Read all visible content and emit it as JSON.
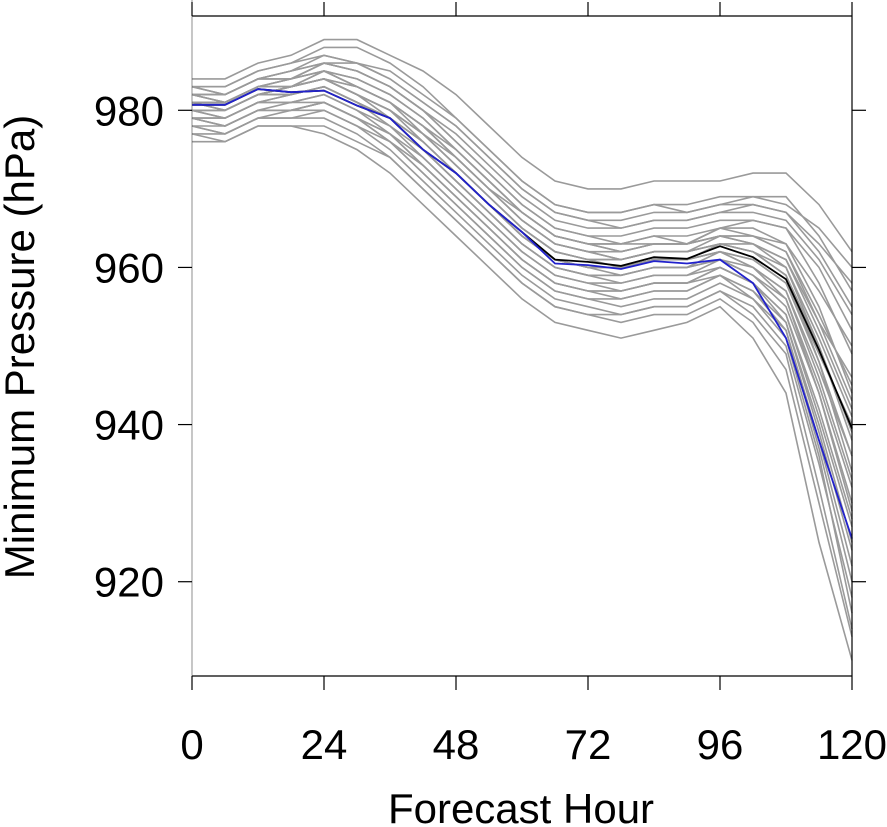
{
  "chart_data": {
    "type": "line",
    "title": "",
    "xlabel": "Forecast Hour",
    "ylabel": "Minimum Pressure (hPa)",
    "xlim": [
      0,
      120
    ],
    "ylim": [
      908,
      992
    ],
    "x_ticks": [
      0,
      24,
      48,
      72,
      96,
      120
    ],
    "x_tick_labels": [
      "0",
      "24",
      "48",
      "72",
      "96",
      "120"
    ],
    "y_ticks": [
      920,
      940,
      960,
      980
    ],
    "y_tick_labels": [
      "920",
      "940",
      "960",
      "980"
    ],
    "grid": false,
    "legend": "none",
    "x": [
      0,
      6,
      12,
      18,
      24,
      30,
      36,
      42,
      48,
      54,
      60,
      66,
      72,
      78,
      84,
      90,
      96,
      102,
      108,
      114,
      120
    ],
    "highlight_series": [
      {
        "color": "#000000",
        "values": [
          980.7,
          980.7,
          982.7,
          982.3,
          982.5,
          980.6,
          979.0,
          975.0,
          972.0,
          968.0,
          964.5,
          961.0,
          960.7,
          960.2,
          961.3,
          961.1,
          962.7,
          961.3,
          958.5,
          949.5,
          939.5
        ]
      },
      {
        "color": "#2222cc",
        "values": [
          980.7,
          980.7,
          982.7,
          982.3,
          982.5,
          980.6,
          979.0,
          975.0,
          972.0,
          968.0,
          964.5,
          960.5,
          960.3,
          959.8,
          960.8,
          960.5,
          961.0,
          958.0,
          951.0,
          938.0,
          925.5
        ]
      }
    ],
    "ensemble_series": [
      {
        "values": [
          981,
          980,
          982,
          983,
          985,
          983,
          981,
          977,
          973,
          969,
          965,
          962,
          961,
          961,
          962,
          962,
          964,
          964,
          963,
          955,
          944
        ]
      },
      {
        "values": [
          980,
          979,
          981,
          982,
          983,
          981,
          979,
          976,
          972,
          968,
          964,
          961,
          960,
          960,
          961,
          961,
          962,
          961,
          958,
          948,
          936
        ]
      },
      {
        "values": [
          982,
          982,
          984,
          984,
          986,
          985,
          983,
          980,
          976,
          972,
          968,
          965,
          964,
          963,
          964,
          964,
          965,
          966,
          965,
          960,
          952
        ]
      },
      {
        "values": [
          979,
          978,
          980,
          980,
          981,
          979,
          977,
          973,
          969,
          965,
          961,
          958,
          957,
          957,
          958,
          958,
          960,
          958,
          954,
          941,
          927
        ]
      },
      {
        "values": [
          983,
          983,
          985,
          986,
          988,
          988,
          986,
          983,
          979,
          975,
          971,
          968,
          967,
          967,
          968,
          968,
          969,
          969,
          969,
          964,
          957
        ]
      },
      {
        "values": [
          978,
          977,
          979,
          979,
          980,
          978,
          975,
          971,
          967,
          963,
          959,
          956,
          955,
          954,
          955,
          955,
          957,
          955,
          950,
          935,
          918
        ]
      },
      {
        "values": [
          981,
          981,
          983,
          983,
          984,
          982,
          980,
          977,
          974,
          970,
          967,
          964,
          963,
          962,
          963,
          963,
          964,
          963,
          960,
          950,
          938
        ]
      },
      {
        "values": [
          980,
          980,
          982,
          982,
          983,
          981,
          979,
          975,
          971,
          967,
          963,
          960,
          959,
          959,
          960,
          960,
          961,
          959,
          955,
          944,
          930
        ]
      },
      {
        "values": [
          982,
          981,
          983,
          984,
          985,
          984,
          982,
          979,
          975,
          971,
          967,
          964,
          963,
          963,
          964,
          963,
          965,
          964,
          962,
          953,
          943
        ]
      },
      {
        "values": [
          977,
          976,
          978,
          978,
          978,
          976,
          974,
          970,
          966,
          962,
          958,
          955,
          954,
          953,
          954,
          954,
          956,
          953,
          947,
          930,
          913
        ]
      },
      {
        "values": [
          981,
          980,
          982,
          983,
          984,
          983,
          981,
          978,
          974,
          970,
          966,
          963,
          962,
          961,
          962,
          962,
          963,
          962,
          959,
          948,
          934
        ]
      },
      {
        "values": [
          983,
          982,
          984,
          985,
          987,
          986,
          984,
          981,
          978,
          974,
          970,
          967,
          966,
          966,
          967,
          967,
          968,
          968,
          967,
          962,
          955
        ]
      },
      {
        "values": [
          979,
          979,
          981,
          981,
          982,
          980,
          977,
          974,
          970,
          966,
          962,
          959,
          958,
          957,
          958,
          958,
          959,
          957,
          952,
          938,
          922
        ]
      },
      {
        "values": [
          980,
          980,
          982,
          983,
          984,
          982,
          980,
          976,
          972,
          968,
          964,
          961,
          960,
          960,
          961,
          961,
          962,
          961,
          958,
          949,
          940
        ]
      },
      {
        "values": [
          982,
          982,
          984,
          985,
          986,
          985,
          983,
          980,
          976,
          972,
          968,
          965,
          964,
          964,
          965,
          965,
          966,
          966,
          965,
          958,
          949
        ]
      },
      {
        "values": [
          978,
          978,
          980,
          980,
          981,
          979,
          976,
          972,
          968,
          964,
          960,
          957,
          956,
          955,
          956,
          956,
          958,
          956,
          951,
          936,
          916
        ]
      },
      {
        "values": [
          981,
          981,
          983,
          984,
          985,
          983,
          981,
          978,
          974,
          970,
          966,
          963,
          962,
          962,
          963,
          963,
          964,
          964,
          962,
          954,
          945
        ]
      },
      {
        "values": [
          980,
          979,
          981,
          982,
          983,
          981,
          978,
          975,
          971,
          967,
          963,
          960,
          959,
          958,
          959,
          959,
          961,
          959,
          956,
          945,
          932
        ]
      },
      {
        "values": [
          984,
          984,
          986,
          987,
          989,
          989,
          987,
          985,
          982,
          978,
          974,
          971,
          970,
          970,
          971,
          971,
          971,
          972,
          972,
          968,
          962
        ]
      },
      {
        "values": [
          976,
          976,
          978,
          978,
          977,
          975,
          972,
          968,
          964,
          960,
          956,
          953,
          952,
          951,
          952,
          953,
          955,
          951,
          944,
          925,
          910
        ]
      },
      {
        "values": [
          981,
          981,
          983,
          983,
          984,
          982,
          980,
          977,
          973,
          969,
          965,
          962,
          961,
          961,
          962,
          962,
          963,
          962,
          960,
          951,
          941
        ]
      },
      {
        "values": [
          982,
          981,
          983,
          984,
          985,
          984,
          982,
          979,
          975,
          971,
          967,
          964,
          963,
          963,
          963,
          963,
          965,
          965,
          963,
          957,
          950
        ]
      },
      {
        "values": [
          979,
          979,
          981,
          981,
          982,
          980,
          978,
          974,
          970,
          966,
          962,
          959,
          958,
          958,
          959,
          959,
          960,
          958,
          953,
          940,
          925
        ]
      },
      {
        "values": [
          980,
          980,
          982,
          982,
          983,
          981,
          979,
          976,
          972,
          968,
          964,
          961,
          960,
          959,
          960,
          960,
          962,
          960,
          957,
          946,
          933
        ]
      },
      {
        "values": [
          983,
          983,
          985,
          986,
          987,
          986,
          985,
          982,
          979,
          975,
          971,
          968,
          967,
          967,
          968,
          967,
          968,
          969,
          968,
          965,
          960
        ]
      },
      {
        "values": [
          978,
          977,
          979,
          980,
          980,
          978,
          976,
          972,
          968,
          964,
          960,
          957,
          956,
          956,
          957,
          957,
          959,
          956,
          952,
          937,
          920
        ]
      },
      {
        "values": [
          981,
          980,
          982,
          983,
          984,
          982,
          980,
          977,
          973,
          969,
          965,
          962,
          961,
          960,
          961,
          961,
          963,
          962,
          959,
          950,
          939
        ]
      },
      {
        "values": [
          982,
          982,
          984,
          984,
          986,
          985,
          983,
          980,
          977,
          973,
          969,
          966,
          965,
          965,
          966,
          966,
          967,
          967,
          966,
          961,
          954
        ]
      },
      {
        "values": [
          979,
          978,
          980,
          981,
          981,
          979,
          977,
          973,
          969,
          965,
          961,
          958,
          957,
          956,
          957,
          957,
          959,
          957,
          953,
          939,
          924
        ]
      },
      {
        "values": [
          980,
          980,
          982,
          982,
          983,
          981,
          979,
          975,
          971,
          967,
          963,
          960,
          959,
          959,
          960,
          960,
          961,
          960,
          957,
          947,
          936
        ]
      },
      {
        "values": [
          982,
          981,
          983,
          983,
          985,
          983,
          981,
          978,
          975,
          971,
          967,
          964,
          963,
          962,
          963,
          963,
          964,
          963,
          961,
          952,
          942
        ]
      },
      {
        "values": [
          977,
          977,
          979,
          979,
          979,
          977,
          974,
          970,
          966,
          962,
          958,
          955,
          954,
          954,
          955,
          955,
          957,
          954,
          949,
          932,
          914
        ]
      },
      {
        "values": [
          981,
          981,
          983,
          983,
          984,
          983,
          981,
          978,
          974,
          970,
          966,
          963,
          962,
          961,
          962,
          962,
          963,
          963,
          961,
          953,
          946
        ]
      },
      {
        "values": [
          980,
          980,
          982,
          983,
          984,
          982,
          979,
          976,
          972,
          968,
          964,
          961,
          960,
          960,
          961,
          961,
          962,
          960,
          956,
          944,
          929
        ]
      },
      {
        "values": [
          983,
          982,
          984,
          985,
          986,
          986,
          984,
          981,
          978,
          974,
          970,
          967,
          966,
          965,
          966,
          966,
          967,
          968,
          967,
          963,
          958
        ]
      },
      {
        "values": [
          979,
          978,
          980,
          980,
          981,
          979,
          976,
          973,
          969,
          965,
          961,
          958,
          957,
          957,
          958,
          958,
          960,
          958,
          954,
          942,
          928
        ]
      }
    ]
  }
}
